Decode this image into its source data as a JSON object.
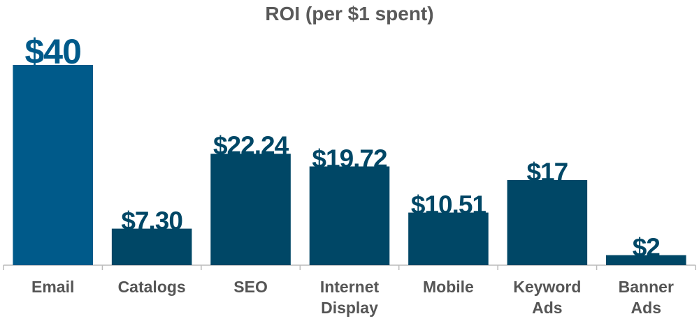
{
  "chart_data": {
    "type": "bar",
    "title": "ROI (per $1 spent)",
    "categories": [
      "Email",
      "Catalogs",
      "SEO",
      "Internet Display",
      "Mobile",
      "Keyword Ads",
      "Banner Ads"
    ],
    "values": [
      40,
      7.3,
      22.24,
      19.72,
      10.51,
      17,
      2
    ],
    "value_labels": [
      "$40",
      "$7.30",
      "$22.24",
      "$19.72",
      "$10.51",
      "$17",
      "$2"
    ],
    "colors": [
      "#005a8a",
      "#004766",
      "#004766",
      "#004766",
      "#004766",
      "#004766",
      "#004766"
    ]
  }
}
